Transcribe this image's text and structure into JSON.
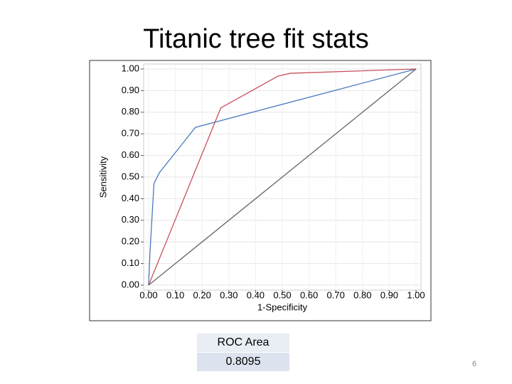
{
  "title": "Titanic tree fit stats",
  "chart_data": {
    "type": "line",
    "xlabel": "1-Specificity",
    "ylabel": "Sensitivity",
    "xlim": [
      0,
      1
    ],
    "ylim": [
      0,
      1
    ],
    "xticks": [
      {
        "value": 0,
        "label": "0.00"
      },
      {
        "value": 0.1,
        "label": "0.10"
      },
      {
        "value": 0.2,
        "label": "0.20"
      },
      {
        "value": 0.3,
        "label": "0.30"
      },
      {
        "value": 0.4,
        "label": "0.40"
      },
      {
        "value": 0.5,
        "label": "0.50"
      },
      {
        "value": 0.6,
        "label": "0.60"
      },
      {
        "value": 0.7,
        "label": "0.70"
      },
      {
        "value": 0.8,
        "label": "0.80"
      },
      {
        "value": 0.9,
        "label": "0.90"
      },
      {
        "value": 1,
        "label": "1.00"
      }
    ],
    "yticks": [
      {
        "value": 0,
        "label": "0.00"
      },
      {
        "value": 0.1,
        "label": "0.10"
      },
      {
        "value": 0.2,
        "label": "0.20"
      },
      {
        "value": 0.3,
        "label": "0.30"
      },
      {
        "value": 0.4,
        "label": "0.40"
      },
      {
        "value": 0.5,
        "label": "0.50"
      },
      {
        "value": 0.6,
        "label": "0.60"
      },
      {
        "value": 0.7,
        "label": "0.70"
      },
      {
        "value": 0.8,
        "label": "0.80"
      },
      {
        "value": 0.9,
        "label": "0.90"
      },
      {
        "value": 1,
        "label": "1.00"
      }
    ],
    "grid": true,
    "series": [
      {
        "color": "#4a78c0",
        "x": [
          0,
          0.005,
          0.02,
          0.04,
          0.175,
          1
        ],
        "values": [
          0,
          0.15,
          0.47,
          0.52,
          0.73,
          1
        ]
      },
      {
        "color": "#c8505a",
        "x": [
          0,
          0.27,
          0.484,
          0.53,
          1
        ],
        "values": [
          0,
          0.82,
          0.967,
          0.98,
          1
        ]
      },
      {
        "color": "#666666",
        "x": [
          0,
          1
        ],
        "values": [
          0,
          1
        ]
      }
    ]
  },
  "table": {
    "header": "ROC Area",
    "value": 0.8095
  },
  "page_number": 6
}
